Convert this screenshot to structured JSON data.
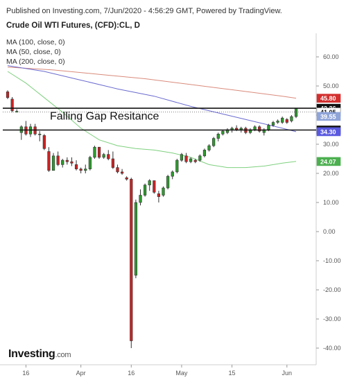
{
  "header": {
    "source": "Published on Investing.com, 7/Jun/2020 - 4:56:29 GMT, Powered by TradingView.",
    "subtitle": "Crude Oil WTI Futures, (CFD):CL, D"
  },
  "legend": [
    "MA (100, close, 0)",
    "MA (50, close, 0)",
    "MA (200, close, 0)"
  ],
  "annotation": "Falling Gap Resitance",
  "logo": {
    "name": "Investing",
    "suffix": ".com"
  },
  "colors": {
    "up": "#2e9a2e",
    "down": "#cc2222",
    "ma100": "#6a6ad0",
    "ma50": "#7ed07e",
    "ma200": "#d98a7a",
    "badge_red": "#d32f2f",
    "badge_black": "#111111",
    "badge_blue": "#5a5ae0",
    "badge_lightblue": "#8fa4d8",
    "badge_green": "#4caf50",
    "badge_white_text": "#111111"
  },
  "chart_data": {
    "type": "candlestick",
    "ylim": [
      -42,
      67
    ],
    "y_ticks": [
      60,
      50,
      40,
      30,
      20,
      10,
      0,
      -10,
      -20,
      -30,
      -40
    ],
    "y_tick_labels": [
      "60.00",
      "50.00",
      "40.00",
      "30.00",
      "20.00",
      "10.00",
      "0.00",
      "-10.00",
      "-20.00",
      "-30.00",
      "-40.00"
    ],
    "x_tick_labels": [
      {
        "label": "16",
        "index": 4
      },
      {
        "label": "Apr",
        "index": 16
      },
      {
        "label": "16",
        "index": 27
      },
      {
        "label": "May",
        "index": 38
      },
      {
        "label": "15",
        "index": 49
      },
      {
        "label": "Jun",
        "index": 61
      }
    ],
    "ohlc": [
      [
        48.0,
        48.5,
        45.5,
        46.0
      ],
      [
        45.5,
        46.2,
        41.0,
        41.5
      ],
      [
        41.0,
        42.0,
        41.0,
        41.3
      ],
      [
        34.0,
        36.5,
        31.5,
        36.0
      ],
      [
        36.0,
        38.0,
        33.0,
        33.5
      ],
      [
        33.5,
        37.0,
        32.5,
        36.0
      ],
      [
        36.0,
        37.0,
        33.0,
        33.5
      ],
      [
        33.5,
        34.5,
        31.0,
        33.5
      ],
      [
        33.0,
        33.5,
        28.0,
        28.5
      ],
      [
        27.5,
        29.0,
        20.5,
        21.0
      ],
      [
        21.0,
        27.0,
        21.0,
        26.0
      ],
      [
        26.0,
        27.5,
        22.5,
        23.0
      ],
      [
        23.0,
        25.0,
        22.0,
        24.5
      ],
      [
        24.5,
        25.5,
        23.0,
        24.0
      ],
      [
        24.0,
        25.5,
        22.5,
        23.5
      ],
      [
        23.0,
        24.5,
        21.0,
        21.5
      ],
      [
        21.5,
        22.0,
        20.0,
        21.0
      ],
      [
        21.0,
        23.0,
        20.0,
        21.5
      ],
      [
        21.5,
        26.0,
        21.0,
        25.5
      ],
      [
        25.5,
        29.5,
        25.0,
        29.0
      ],
      [
        29.0,
        29.0,
        25.0,
        25.5
      ],
      [
        25.5,
        27.0,
        25.0,
        26.5
      ],
      [
        26.5,
        28.0,
        24.5,
        25.0
      ],
      [
        25.0,
        27.5,
        21.5,
        22.0
      ],
      [
        22.0,
        23.0,
        20.0,
        20.5
      ],
      [
        20.5,
        21.5,
        19.5,
        20.0
      ],
      [
        18.5,
        19.0,
        17.5,
        18.0
      ],
      [
        18.0,
        18.5,
        -40.0,
        -37.5
      ],
      [
        -15.0,
        11.0,
        -16.0,
        10.0
      ],
      [
        10.0,
        14.5,
        9.0,
        12.5
      ],
      [
        12.5,
        16.5,
        12.0,
        16.0
      ],
      [
        16.0,
        18.0,
        14.0,
        17.5
      ],
      [
        17.5,
        17.5,
        13.0,
        13.5
      ],
      [
        13.0,
        14.0,
        10.0,
        12.0
      ],
      [
        12.5,
        15.5,
        12.0,
        15.0
      ],
      [
        15.0,
        19.5,
        14.5,
        19.0
      ],
      [
        19.0,
        21.0,
        18.0,
        20.5
      ],
      [
        20.5,
        25.0,
        20.0,
        24.5
      ],
      [
        24.5,
        27.0,
        24.0,
        26.5
      ],
      [
        26.0,
        27.0,
        23.5,
        24.0
      ],
      [
        24.0,
        25.5,
        23.5,
        25.0
      ],
      [
        24.5,
        25.0,
        23.5,
        24.0
      ],
      [
        24.5,
        26.5,
        24.0,
        26.0
      ],
      [
        26.0,
        28.5,
        25.5,
        28.0
      ],
      [
        28.0,
        30.0,
        27.5,
        29.5
      ],
      [
        29.5,
        32.5,
        29.0,
        32.0
      ],
      [
        32.0,
        34.0,
        31.0,
        33.5
      ],
      [
        33.5,
        35.0,
        33.0,
        34.5
      ],
      [
        34.0,
        35.5,
        33.5,
        35.0
      ],
      [
        35.0,
        36.0,
        34.0,
        35.5
      ],
      [
        35.5,
        36.5,
        34.5,
        35.0
      ],
      [
        35.0,
        36.0,
        34.0,
        35.5
      ],
      [
        35.5,
        36.0,
        33.5,
        34.0
      ],
      [
        34.0,
        35.5,
        33.5,
        35.0
      ],
      [
        35.0,
        36.5,
        34.5,
        36.0
      ],
      [
        36.0,
        36.5,
        34.0,
        34.5
      ],
      [
        34.0,
        35.5,
        33.0,
        35.0
      ],
      [
        35.0,
        37.0,
        34.5,
        36.5
      ],
      [
        36.5,
        38.0,
        36.0,
        37.5
      ],
      [
        37.5,
        38.5,
        37.0,
        38.0
      ],
      [
        37.5,
        39.5,
        37.0,
        39.0
      ],
      [
        38.5,
        39.0,
        37.0,
        37.5
      ],
      [
        38.0,
        40.0,
        37.5,
        39.5
      ],
      [
        39.5,
        42.5,
        39.0,
        42.3
      ]
    ],
    "ma200": [
      [
        0,
        56.5
      ],
      [
        10,
        55.5
      ],
      [
        20,
        54.0
      ],
      [
        30,
        52.5
      ],
      [
        40,
        50.5
      ],
      [
        50,
        48.5
      ],
      [
        60,
        46.5
      ],
      [
        63,
        45.8
      ]
    ],
    "ma100": [
      [
        0,
        57.0
      ],
      [
        8,
        55.0
      ],
      [
        16,
        52.0
      ],
      [
        24,
        49.0
      ],
      [
        32,
        46.5
      ],
      [
        40,
        43.0
      ],
      [
        48,
        40.0
      ],
      [
        56,
        37.0
      ],
      [
        60,
        35.5
      ],
      [
        63,
        34.3
      ]
    ],
    "ma50": [
      [
        0,
        55.0
      ],
      [
        4,
        51.0
      ],
      [
        8,
        46.0
      ],
      [
        12,
        41.0
      ],
      [
        16,
        35.5
      ],
      [
        20,
        31.5
      ],
      [
        24,
        29.5
      ],
      [
        28,
        28.5
      ],
      [
        32,
        28.0
      ],
      [
        36,
        27.0
      ],
      [
        40,
        25.5
      ],
      [
        44,
        23.0
      ],
      [
        48,
        22.0
      ],
      [
        52,
        22.0
      ],
      [
        56,
        22.5
      ],
      [
        60,
        23.5
      ],
      [
        63,
        24.1
      ]
    ],
    "horizontal_lines": [
      {
        "value": 42.36,
        "style": "solid",
        "color": "#111111"
      },
      {
        "value": 41.05,
        "style": "dotted",
        "color": "#555555"
      },
      {
        "value": 34.88,
        "style": "solid",
        "color": "#111111"
      }
    ],
    "price_badges": [
      {
        "label": "45.80",
        "value": 45.8,
        "bg": "#d32f2f",
        "fg": "#ffffff"
      },
      {
        "label": "42.36",
        "value": 42.36,
        "bg": "#111111",
        "fg": "#ffffff"
      },
      {
        "label": "41.05",
        "value": 41.05,
        "bg": "#ffffff",
        "fg": "#111111"
      },
      {
        "label": "39.55",
        "value": 39.55,
        "bg": "#8fa4d8",
        "fg": "#ffffff"
      },
      {
        "label": "34.88",
        "value": 34.88,
        "bg": "#111111",
        "fg": "#ffffff"
      },
      {
        "label": "34.30",
        "value": 34.3,
        "bg": "#5a5ae0",
        "fg": "#ffffff"
      },
      {
        "label": "24.07",
        "value": 24.07,
        "bg": "#4caf50",
        "fg": "#ffffff"
      }
    ]
  }
}
